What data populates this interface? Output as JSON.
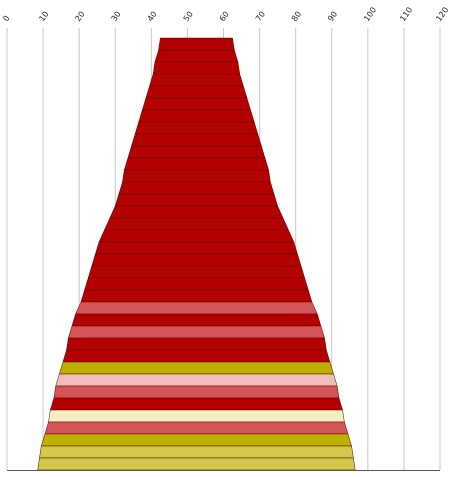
{
  "chart_data": {
    "type": "bar",
    "orientation": "horizontal-centered-funnel",
    "title": "",
    "xlabel": "",
    "ylabel": "",
    "center": 52.5,
    "xlim": [
      0,
      120
    ],
    "x_ticks": [
      0,
      10,
      20,
      30,
      40,
      50,
      60,
      70,
      80,
      90,
      100,
      110,
      120
    ],
    "grid": true,
    "legend": "none",
    "values": [
      20,
      21,
      23,
      24,
      26,
      28,
      30,
      32,
      34,
      36,
      38,
      40,
      41,
      43,
      45,
      48,
      51,
      54,
      56,
      58,
      60,
      62,
      64,
      67,
      69,
      71,
      72,
      74,
      76,
      78,
      79,
      81,
      82,
      84,
      86,
      87
    ],
    "colors": [
      "#b40000",
      "#b40000",
      "#b40000",
      "#b40000",
      "#b40000",
      "#b40000",
      "#b40000",
      "#b40000",
      "#b40000",
      "#b40000",
      "#b40000",
      "#b40000",
      "#b40000",
      "#b40000",
      "#b40000",
      "#b40000",
      "#b40000",
      "#b40000",
      "#b40000",
      "#b40000",
      "#b40000",
      "#b40000",
      "#d35555",
      "#b40000",
      "#d35555",
      "#b40000",
      "#b40000",
      "#bcb000",
      "#f0bcbc",
      "#d35555",
      "#b40000",
      "#f2eec0",
      "#d35555",
      "#bcb000",
      "#d4c84a",
      "#d4c84a"
    ]
  }
}
